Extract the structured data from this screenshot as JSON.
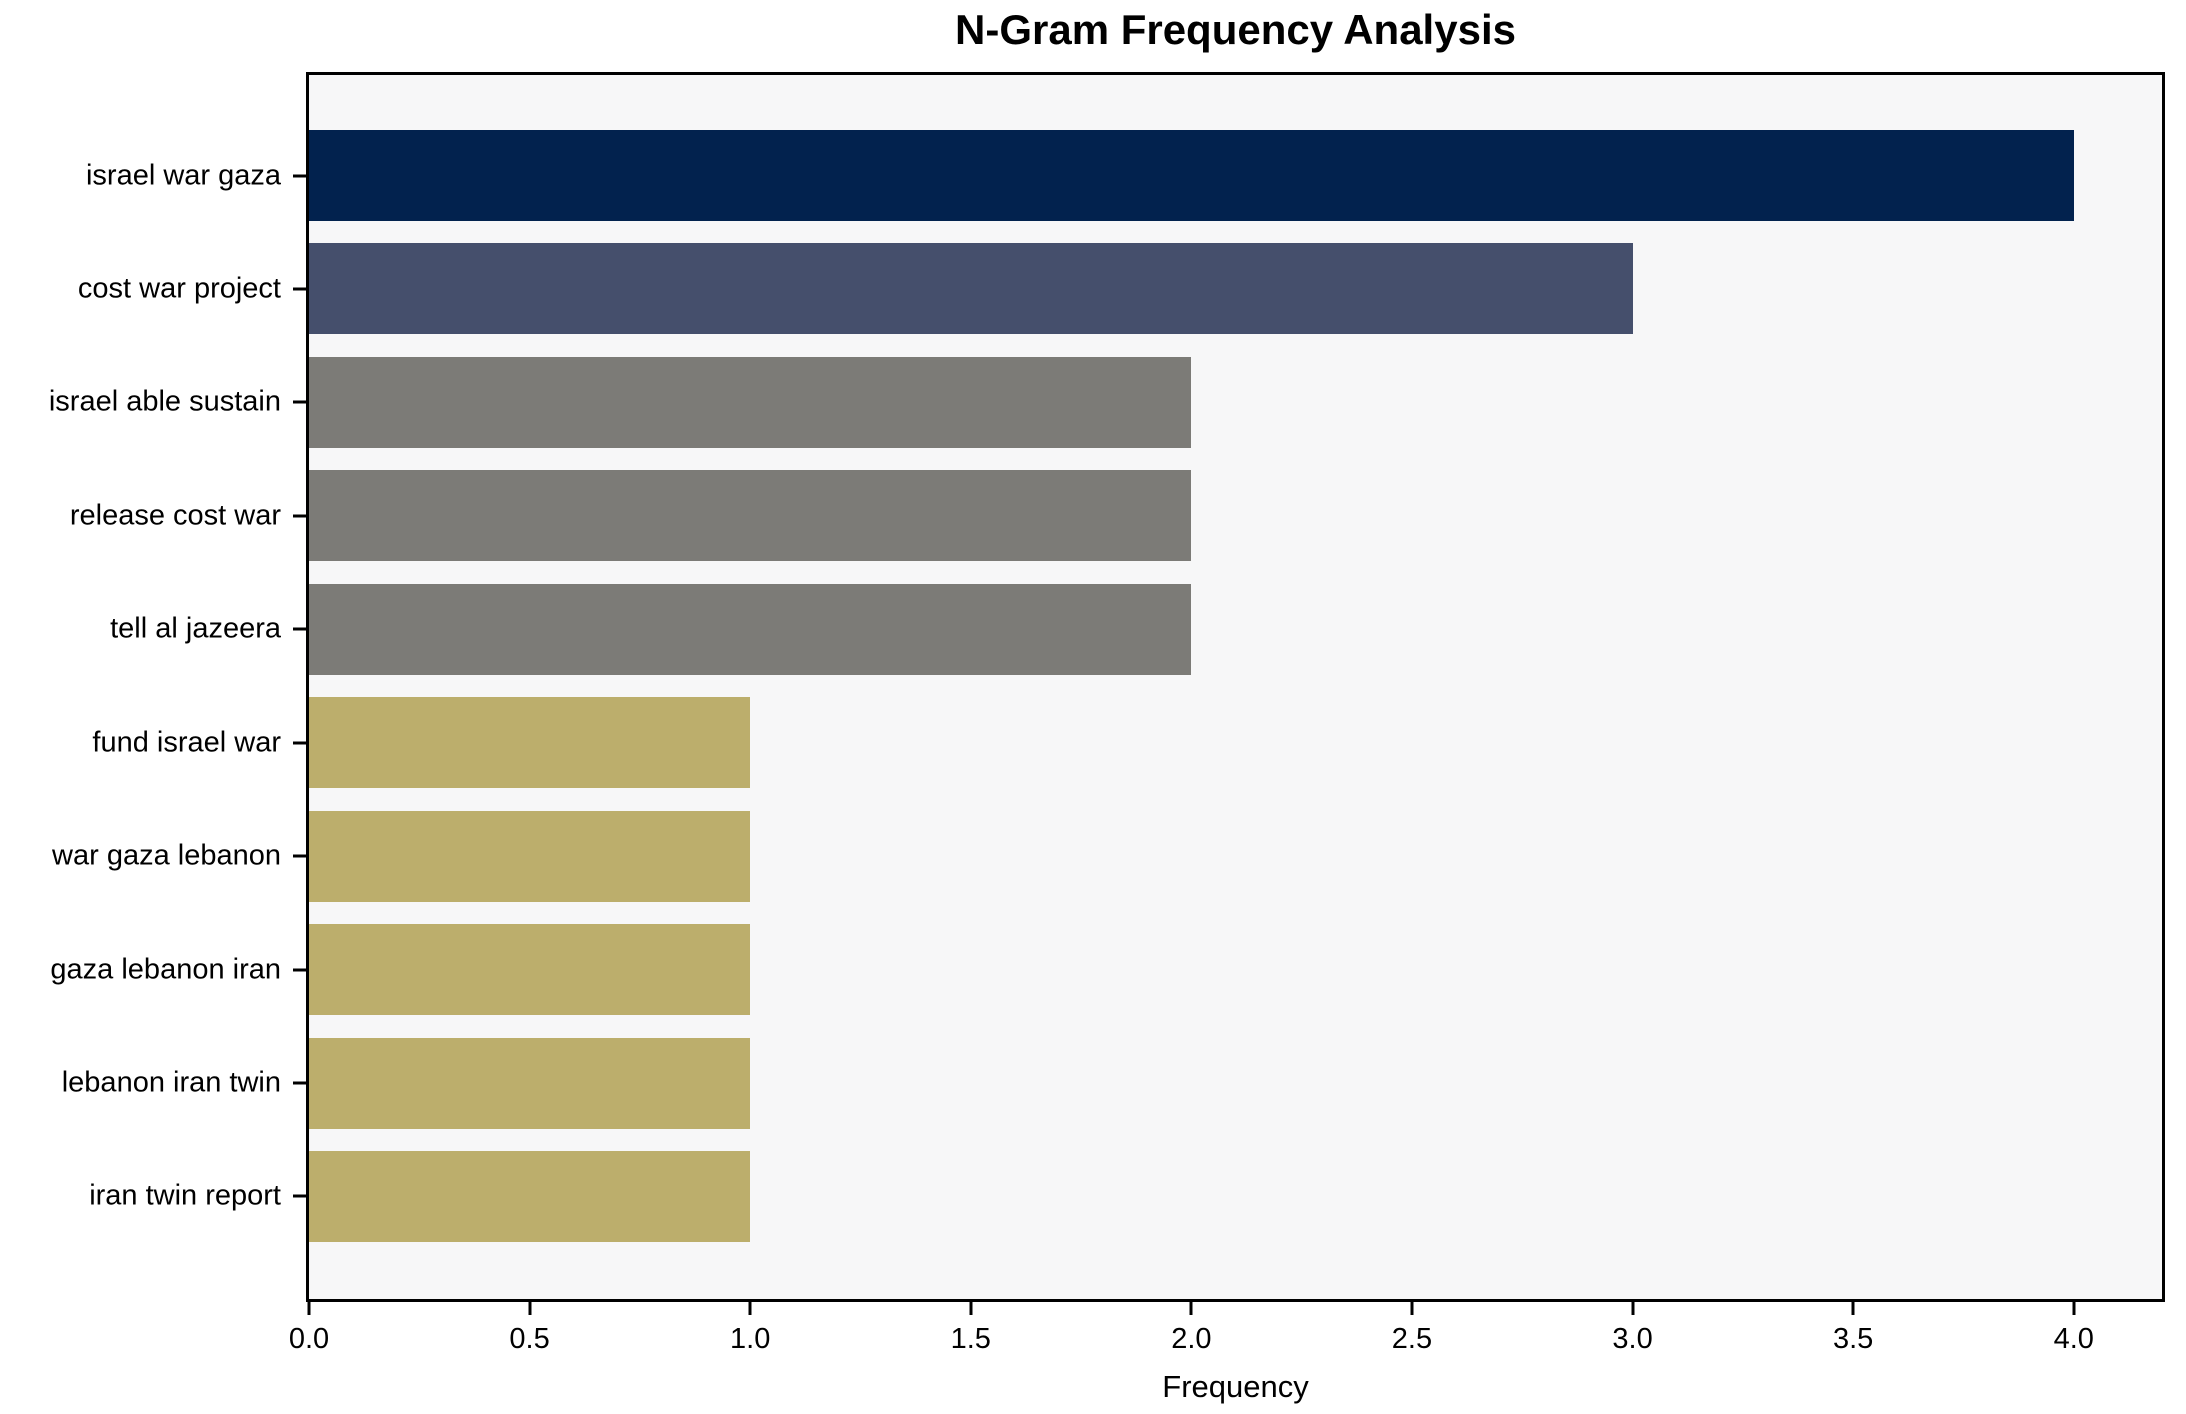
{
  "title": "N-Gram Frequency Analysis",
  "chart_data": {
    "type": "bar",
    "orientation": "horizontal",
    "title": "N-Gram Frequency Analysis",
    "xlabel": "Frequency",
    "ylabel": "",
    "categories": [
      "israel war gaza",
      "cost war project",
      "israel able sustain",
      "release cost war",
      "tell al jazeera",
      "fund israel war",
      "war gaza lebanon",
      "gaza lebanon iran",
      "lebanon iran twin",
      "iran twin report"
    ],
    "values": [
      4,
      3,
      2,
      2,
      2,
      1,
      1,
      1,
      1,
      1
    ],
    "bar_colors": [
      "#02224e",
      "#454f6c",
      "#7c7b77",
      "#7c7b77",
      "#7c7b77",
      "#bcae6c",
      "#bcae6c",
      "#bcae6c",
      "#bcae6c",
      "#bcae6c"
    ],
    "xlim": [
      0,
      4.2
    ],
    "xticks": [
      0.0,
      0.5,
      1.0,
      1.5,
      2.0,
      2.5,
      3.0,
      3.5,
      4.0
    ],
    "xtick_labels": [
      "0.0",
      "0.5",
      "1.0",
      "1.5",
      "2.0",
      "2.5",
      "3.0",
      "3.5",
      "4.0"
    ],
    "grid": false,
    "legend": false,
    "plot_background": "#f7f7f8",
    "figure_background": "#ffffff",
    "axis_color": "#000000",
    "text_color": "#000000"
  }
}
